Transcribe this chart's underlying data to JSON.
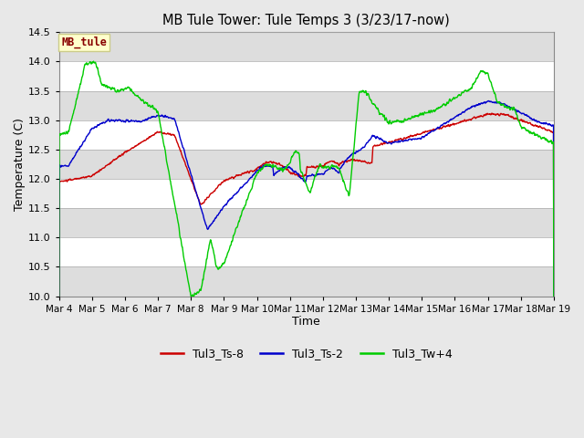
{
  "title": "MB Tule Tower: Tule Temps 3 (3/23/17-now)",
  "xlabel": "Time",
  "ylabel": "Temperature (C)",
  "ylim": [
    10.0,
    14.5
  ],
  "yticks": [
    10.0,
    10.5,
    11.0,
    11.5,
    12.0,
    12.5,
    13.0,
    13.5,
    14.0,
    14.5
  ],
  "x_start": 4,
  "x_end": 19,
  "xtick_labels": [
    "Mar 4",
    "Mar 5",
    "Mar 6",
    "Mar 7",
    "Mar 8",
    "Mar 9",
    "Mar 10",
    "Mar 11",
    "Mar 12",
    "Mar 13",
    "Mar 14",
    "Mar 15",
    "Mar 16",
    "Mar 17",
    "Mar 18",
    "Mar 19"
  ],
  "xtick_positions": [
    4,
    5,
    6,
    7,
    8,
    9,
    10,
    11,
    12,
    13,
    14,
    15,
    16,
    17,
    18,
    19
  ],
  "color_red": "#cc0000",
  "color_blue": "#0000cc",
  "color_green": "#00cc00",
  "bg_outer": "#e8e8e8",
  "band_white": "#ffffff",
  "band_gray": "#dddddd",
  "legend_box_color": "#ffffcc",
  "legend_box_edge": "#cccc88",
  "label_red": "Tul3_Ts-8",
  "label_blue": "Tul3_Ts-2",
  "label_green": "Tul3_Tw+4",
  "station_label": "MB_tule",
  "linewidth": 1.0
}
